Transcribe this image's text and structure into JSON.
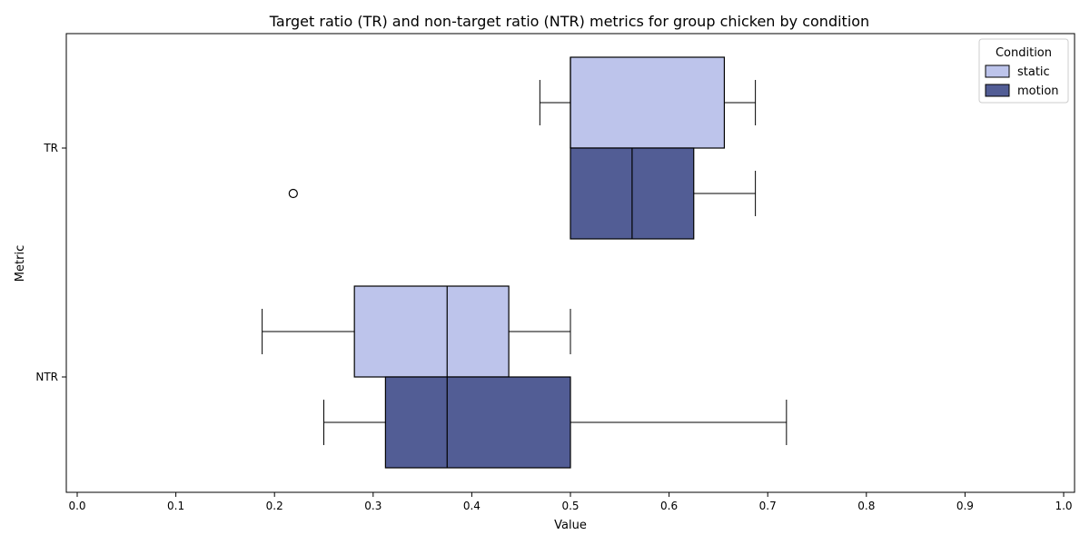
{
  "chart_data": {
    "type": "boxplot",
    "orientation": "horizontal",
    "title": "Target ratio (TR) and non-target ratio (NTR) metrics for group chicken by condition",
    "xlabel": "Value",
    "ylabel": "Metric",
    "xlim": [
      0.0,
      1.0
    ],
    "xticks": [
      "0.0",
      "0.1",
      "0.2",
      "0.3",
      "0.4",
      "0.5",
      "0.6",
      "0.7",
      "0.8",
      "0.9",
      "1.0"
    ],
    "categories": [
      "TR",
      "NTR"
    ],
    "legend": {
      "title": "Condition",
      "placement": "top-right"
    },
    "series": [
      {
        "name": "static",
        "color": "#bdc4eb",
        "boxes": [
          {
            "category": "TR",
            "whisker_low": 0.469,
            "q1": 0.5,
            "median": 0.5,
            "q3": 0.656,
            "whisker_high": 0.6875,
            "outliers": []
          },
          {
            "category": "NTR",
            "whisker_low": 0.1875,
            "q1": 0.281,
            "median": 0.375,
            "q3": 0.4375,
            "whisker_high": 0.5,
            "outliers": []
          }
        ]
      },
      {
        "name": "motion",
        "color": "#525d95",
        "boxes": [
          {
            "category": "TR",
            "whisker_low": 0.5,
            "q1": 0.5,
            "median": 0.5625,
            "q3": 0.625,
            "whisker_high": 0.6875,
            "outliers": [
              0.219
            ]
          },
          {
            "category": "NTR",
            "whisker_low": 0.25,
            "q1": 0.3125,
            "median": 0.375,
            "q3": 0.5,
            "whisker_high": 0.719,
            "outliers": []
          }
        ]
      }
    ]
  }
}
